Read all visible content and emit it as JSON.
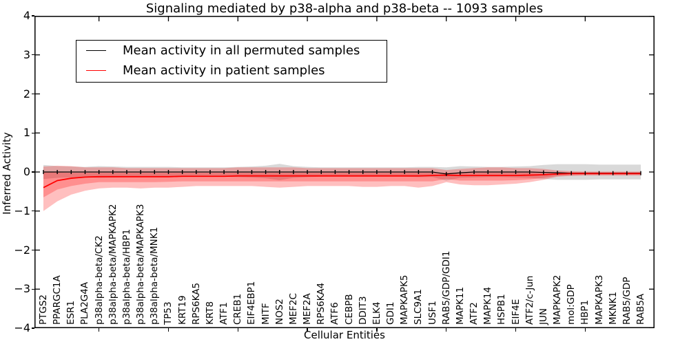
{
  "chart_data": {
    "type": "line",
    "title": "Signaling mediated by p38-alpha and p38-beta -- 1093 samples",
    "xlabel": "Cellular Entities",
    "ylabel": "Inferred Activity",
    "ylim": [
      -4,
      4
    ],
    "yticks": [
      {
        "v": 4,
        "label": "4"
      },
      {
        "v": 3,
        "label": "3"
      },
      {
        "v": 2,
        "label": "2"
      },
      {
        "v": 1,
        "label": "1"
      },
      {
        "v": 0,
        "label": "0"
      },
      {
        "v": -1,
        "label": "−1"
      },
      {
        "v": -2,
        "label": "−2"
      },
      {
        "v": -3,
        "label": "−3"
      },
      {
        "v": -4,
        "label": "−4"
      }
    ],
    "legend_position": "upper left",
    "legend": [
      {
        "label": "Mean activity in all permuted samples",
        "color": "#000000"
      },
      {
        "label": "Mean activity in patient samples",
        "color": "#ff0000"
      }
    ],
    "categories": [
      "PTGS2",
      "PPARGC1A",
      "ESR1",
      "PLA2G4A",
      "p38alpha-beta/CK2",
      "p38alpha-beta/MAPKAPK2",
      "p38alpha-beta/HBP1",
      "p38alpha-beta/MAPKAPK3",
      "p38alpha-beta/MNK1",
      "TP53",
      "KRT19",
      "RPS6KA5",
      "KRT8",
      "ATF1",
      "CREB1",
      "EIF4EBP1",
      "MITF",
      "NOS2",
      "MEF2C",
      "MEF2A",
      "RPS6KA4",
      "ATF6",
      "CEBPB",
      "DDIT3",
      "ELK4",
      "GDI1",
      "MAPKAPK5",
      "SLC9A1",
      "USF1",
      "RAB5/GDP/GDI1",
      "MAPK11",
      "ATF2",
      "MAPK14",
      "HSPB1",
      "EIF4E",
      "ATF2/c-Jun",
      "JUN",
      "MAPKAPK2",
      "mol:GDP",
      "HBP1",
      "MAPKAPK3",
      "MKNK1",
      "RAB5/GDP",
      "RAB5A"
    ],
    "series": [
      {
        "name": "Mean activity in all permuted samples",
        "color": "#000000",
        "width": 1.2,
        "marker": "tick",
        "values": [
          0,
          0,
          0,
          0,
          0,
          0,
          0,
          0,
          0,
          0,
          0,
          0,
          0,
          0,
          0,
          0,
          0,
          0,
          0,
          0,
          0,
          0,
          0,
          0,
          0,
          0,
          0,
          0,
          0,
          -0.05,
          -0.02,
          0,
          0,
          0,
          0,
          0,
          -0.01,
          -0.02,
          -0.03,
          -0.03,
          -0.03,
          -0.03,
          -0.03,
          -0.03
        ]
      },
      {
        "name": "Mean activity in patient samples",
        "color": "#ff0000",
        "width": 1.8,
        "marker": "none",
        "values": [
          -0.4,
          -0.22,
          -0.16,
          -0.13,
          -0.12,
          -0.12,
          -0.12,
          -0.12,
          -0.12,
          -0.12,
          -0.11,
          -0.11,
          -0.11,
          -0.11,
          -0.1,
          -0.1,
          -0.1,
          -0.1,
          -0.1,
          -0.1,
          -0.1,
          -0.1,
          -0.1,
          -0.1,
          -0.1,
          -0.1,
          -0.1,
          -0.1,
          -0.09,
          -0.08,
          -0.09,
          -0.09,
          -0.09,
          -0.09,
          -0.09,
          -0.08,
          -0.07,
          -0.05,
          -0.04,
          -0.04,
          -0.04,
          -0.04,
          -0.04,
          -0.04
        ]
      }
    ],
    "bands": [
      {
        "name": "permuted samples spread",
        "color": "#888888",
        "opacity": 0.32,
        "hi": [
          0.18,
          0.15,
          0.14,
          0.13,
          0.15,
          0.14,
          0.13,
          0.13,
          0.13,
          0.13,
          0.12,
          0.12,
          0.12,
          0.12,
          0.13,
          0.14,
          0.16,
          0.21,
          0.15,
          0.13,
          0.12,
          0.12,
          0.12,
          0.12,
          0.12,
          0.12,
          0.12,
          0.13,
          0.13,
          0.12,
          0.15,
          0.14,
          0.13,
          0.13,
          0.14,
          0.15,
          0.18,
          0.2,
          0.2,
          0.2,
          0.19,
          0.19,
          0.19,
          0.19
        ],
        "lo": [
          -0.18,
          -0.15,
          -0.14,
          -0.13,
          -0.15,
          -0.14,
          -0.13,
          -0.13,
          -0.13,
          -0.13,
          -0.12,
          -0.12,
          -0.12,
          -0.12,
          -0.13,
          -0.14,
          -0.16,
          -0.21,
          -0.15,
          -0.13,
          -0.12,
          -0.12,
          -0.12,
          -0.12,
          -0.12,
          -0.12,
          -0.12,
          -0.13,
          -0.13,
          -0.22,
          -0.15,
          -0.14,
          -0.13,
          -0.13,
          -0.14,
          -0.15,
          -0.18,
          -0.2,
          -0.2,
          -0.2,
          -0.19,
          -0.19,
          -0.19,
          -0.19
        ]
      },
      {
        "name": "patient samples spread (outer)",
        "color": "#ff0000",
        "opacity": 0.25,
        "hi": [
          0.14,
          0.16,
          0.15,
          0.12,
          0.12,
          0.12,
          0.1,
          0.1,
          0.1,
          0.1,
          0.1,
          0.1,
          0.1,
          0.1,
          0.12,
          0.12,
          0.12,
          0.12,
          0.12,
          0.1,
          0.1,
          0.1,
          0.1,
          0.1,
          0.1,
          0.1,
          0.1,
          0.1,
          0.1,
          0.05,
          0.08,
          0.1,
          0.12,
          0.12,
          0.1,
          0.1,
          0.08,
          0.04,
          0.02,
          0.01,
          0.01,
          0.01,
          0.01,
          0.01
        ],
        "lo": [
          -1.0,
          -0.75,
          -0.58,
          -0.48,
          -0.42,
          -0.4,
          -0.4,
          -0.42,
          -0.4,
          -0.4,
          -0.38,
          -0.36,
          -0.36,
          -0.36,
          -0.36,
          -0.36,
          -0.38,
          -0.4,
          -0.38,
          -0.36,
          -0.36,
          -0.36,
          -0.36,
          -0.38,
          -0.38,
          -0.36,
          -0.36,
          -0.4,
          -0.36,
          -0.26,
          -0.32,
          -0.34,
          -0.34,
          -0.32,
          -0.3,
          -0.26,
          -0.2,
          -0.12,
          -0.1,
          -0.09,
          -0.09,
          -0.09,
          -0.09,
          -0.09
        ]
      },
      {
        "name": "patient samples spread (inner)",
        "color": "#ff0000",
        "opacity": 0.25,
        "hi": [
          0.0,
          -0.01,
          -0.02,
          -0.02,
          -0.02,
          -0.02,
          -0.02,
          -0.02,
          -0.02,
          -0.02,
          -0.02,
          -0.02,
          -0.02,
          -0.02,
          -0.02,
          -0.02,
          -0.02,
          -0.02,
          -0.02,
          -0.02,
          -0.02,
          -0.02,
          -0.02,
          -0.02,
          -0.02,
          -0.02,
          -0.02,
          -0.02,
          -0.02,
          -0.02,
          -0.02,
          -0.02,
          -0.02,
          -0.02,
          -0.02,
          -0.02,
          -0.02,
          -0.01,
          -0.01,
          -0.01,
          -0.01,
          -0.01,
          -0.01,
          -0.01
        ],
        "lo": [
          -0.65,
          -0.45,
          -0.36,
          -0.3,
          -0.26,
          -0.26,
          -0.26,
          -0.26,
          -0.26,
          -0.25,
          -0.24,
          -0.24,
          -0.24,
          -0.24,
          -0.24,
          -0.24,
          -0.24,
          -0.24,
          -0.24,
          -0.24,
          -0.24,
          -0.24,
          -0.24,
          -0.24,
          -0.24,
          -0.24,
          -0.24,
          -0.24,
          -0.24,
          -0.18,
          -0.22,
          -0.22,
          -0.22,
          -0.22,
          -0.21,
          -0.19,
          -0.15,
          -0.1,
          -0.08,
          -0.07,
          -0.07,
          -0.07,
          -0.07,
          -0.07
        ]
      }
    ]
  }
}
